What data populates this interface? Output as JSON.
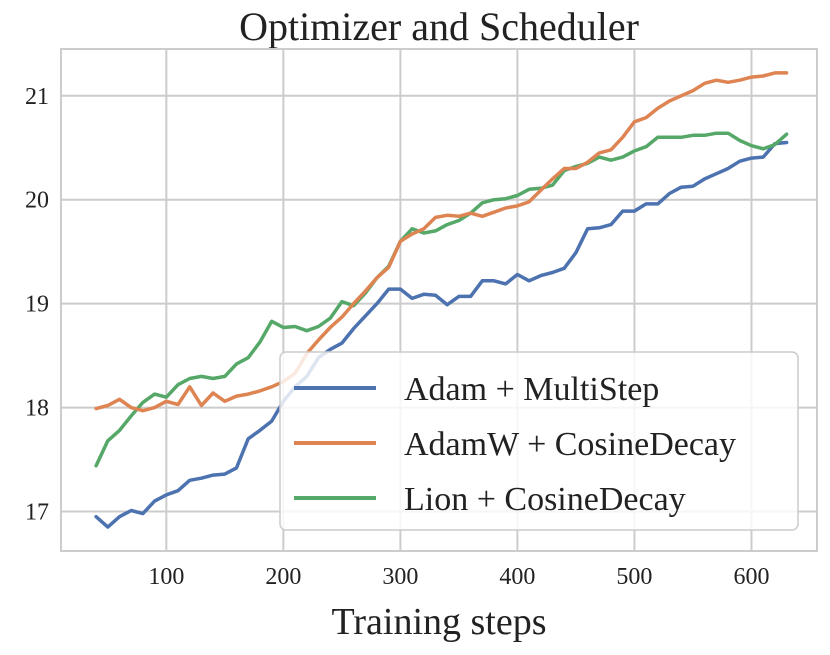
{
  "chart_data": {
    "type": "line",
    "title": "Optimizer and Scheduler",
    "xlabel": "Training steps",
    "ylabel": "",
    "xlim": [
      10,
      656
    ],
    "ylim": [
      16.62,
      21.45
    ],
    "xticks": [
      100,
      200,
      300,
      400,
      500,
      600
    ],
    "yticks": [
      17,
      18,
      19,
      20,
      21
    ],
    "grid": true,
    "legend_position": "lower-right",
    "x": [
      40,
      50,
      60,
      70,
      80,
      90,
      100,
      110,
      120,
      130,
      140,
      150,
      160,
      170,
      180,
      190,
      200,
      210,
      220,
      230,
      240,
      250,
      260,
      270,
      280,
      290,
      300,
      310,
      320,
      330,
      340,
      350,
      360,
      370,
      380,
      390,
      400,
      410,
      420,
      430,
      440,
      450,
      460,
      470,
      480,
      490,
      500,
      510,
      520,
      530,
      540,
      550,
      560,
      570,
      580,
      590,
      600,
      610,
      620,
      630
    ],
    "series": [
      {
        "name": "Adam + MultiStep",
        "color": "#4c72b0",
        "values": [
          16.95,
          16.85,
          16.95,
          17.01,
          16.98,
          17.1,
          17.16,
          17.2,
          17.3,
          17.32,
          17.35,
          17.36,
          17.42,
          17.7,
          17.78,
          17.87,
          18.06,
          18.2,
          18.3,
          18.48,
          18.56,
          18.62,
          18.76,
          18.88,
          19.0,
          19.14,
          19.14,
          19.05,
          19.09,
          19.08,
          18.99,
          19.07,
          19.07,
          19.22,
          19.22,
          19.19,
          19.28,
          19.22,
          19.27,
          19.3,
          19.34,
          19.49,
          19.72,
          19.73,
          19.76,
          19.89,
          19.89,
          19.96,
          19.96,
          20.06,
          20.12,
          20.13,
          20.2,
          20.25,
          20.3,
          20.37,
          20.4,
          20.41,
          20.54,
          20.55
        ]
      },
      {
        "name": "AdamW + CosineDecay",
        "color": "#dd8452",
        "values": [
          17.99,
          18.02,
          18.08,
          18.0,
          17.97,
          18.0,
          18.06,
          18.03,
          18.2,
          18.02,
          18.14,
          18.06,
          18.11,
          18.13,
          18.16,
          18.2,
          18.25,
          18.33,
          18.52,
          18.65,
          18.77,
          18.87,
          19.0,
          19.12,
          19.25,
          19.35,
          19.6,
          19.67,
          19.72,
          19.83,
          19.85,
          19.84,
          19.87,
          19.84,
          19.88,
          19.92,
          19.94,
          19.98,
          20.09,
          20.2,
          20.3,
          20.3,
          20.36,
          20.45,
          20.48,
          20.6,
          20.75,
          20.79,
          20.88,
          20.95,
          21.0,
          21.05,
          21.12,
          21.15,
          21.13,
          21.15,
          21.18,
          21.19,
          21.22,
          21.22
        ]
      },
      {
        "name": "Lion + CosineDecay",
        "color": "#55a868",
        "values": [
          17.44,
          17.68,
          17.78,
          17.92,
          18.05,
          18.13,
          18.1,
          18.22,
          18.28,
          18.3,
          18.28,
          18.3,
          18.42,
          18.48,
          18.63,
          18.83,
          18.77,
          18.78,
          18.74,
          18.78,
          18.86,
          19.02,
          18.98,
          19.1,
          19.25,
          19.36,
          19.6,
          19.72,
          19.68,
          19.7,
          19.76,
          19.8,
          19.87,
          19.97,
          20.0,
          20.01,
          20.04,
          20.1,
          20.11,
          20.14,
          20.28,
          20.32,
          20.35,
          20.41,
          20.38,
          20.41,
          20.47,
          20.51,
          20.6,
          20.6,
          20.6,
          20.62,
          20.62,
          20.64,
          20.64,
          20.57,
          20.52,
          20.49,
          20.53,
          20.63
        ]
      }
    ]
  }
}
